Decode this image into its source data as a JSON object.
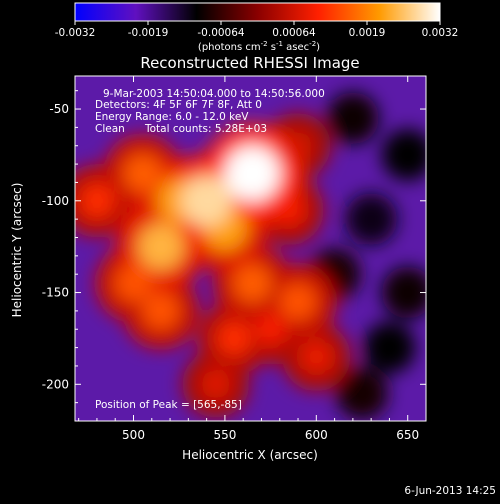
{
  "colorbar": {
    "ticks": [
      "-0.0032",
      "-0.0019",
      "-0.00064",
      "0.00064",
      "0.0019",
      "0.0032"
    ],
    "units_prefix": "(photons cm",
    "units_exp1": "-2",
    "units_mid1": " s",
    "units_exp2": "-1",
    "units_mid2": " asec",
    "units_exp3": "-2",
    "units_suffix": ")"
  },
  "chart_data": {
    "type": "heatmap",
    "title": "Reconstructed RHESSI Image",
    "xlabel": "Heliocentric X (arcsec)",
    "ylabel": "Heliocentric Y (arcsec)",
    "xlim": [
      468,
      660
    ],
    "ylim": [
      -220,
      -32
    ],
    "x_ticks": [
      "500",
      "550",
      "600",
      "650"
    ],
    "y_ticks": [
      "-50",
      "-100",
      "-150",
      "-200"
    ],
    "x_tick_values": [
      500,
      550,
      600,
      650
    ],
    "y_tick_values": [
      -50,
      -100,
      -150,
      -200
    ],
    "color_range": [
      -0.0032,
      0.0032
    ],
    "colormap": [
      "#0000ff",
      "#6010c0",
      "#000000",
      "#8a0000",
      "#ff2000",
      "#ff9a00",
      "#ffffff"
    ],
    "annotations": {
      "time_range": "9-Mar-2003 14:50:04.000 to 14:50:56.000",
      "detectors": "Detectors: 4F 5F 6F 7F 8F, Att 0",
      "energy": "Energy Range: 6.0 - 12.0 keV",
      "method": "Clean",
      "counts": "Total counts: 5.28E+03",
      "peak": "Position of Peak = [565,-85]"
    },
    "sources": [
      {
        "x": 565,
        "y": -85,
        "value": 0.0032
      },
      {
        "x": 540,
        "y": -100,
        "value": 0.0028
      },
      {
        "x": 515,
        "y": -125,
        "value": 0.0024
      },
      {
        "x": 525,
        "y": -100,
        "value": 0.0022
      },
      {
        "x": 550,
        "y": -115,
        "value": 0.0022
      },
      {
        "x": 505,
        "y": -85,
        "value": 0.0016
      },
      {
        "x": 500,
        "y": -145,
        "value": 0.0015
      },
      {
        "x": 515,
        "y": -160,
        "value": 0.0015
      },
      {
        "x": 565,
        "y": -145,
        "value": 0.0016
      },
      {
        "x": 590,
        "y": -155,
        "value": 0.0015
      },
      {
        "x": 555,
        "y": -175,
        "value": 0.0012
      },
      {
        "x": 575,
        "y": -170,
        "value": 0.001
      },
      {
        "x": 600,
        "y": -185,
        "value": 0.0009
      },
      {
        "x": 585,
        "y": -105,
        "value": 0.001
      },
      {
        "x": 480,
        "y": -100,
        "value": 0.0012
      },
      {
        "x": 545,
        "y": -200,
        "value": 0.0008
      },
      {
        "x": 590,
        "y": -70,
        "value": 0.0007
      },
      {
        "x": 630,
        "y": -110,
        "value": -0.0012
      },
      {
        "x": 640,
        "y": -180,
        "value": -0.0011
      },
      {
        "x": 650,
        "y": -75,
        "value": -0.0011
      },
      {
        "x": 620,
        "y": -55,
        "value": -0.001
      },
      {
        "x": 610,
        "y": -140,
        "value": -0.0009
      },
      {
        "x": 625,
        "y": -205,
        "value": -0.0009
      },
      {
        "x": 650,
        "y": -150,
        "value": -0.001
      }
    ]
  },
  "footer": {
    "timestamp": "6-Jun-2013 14:25"
  }
}
